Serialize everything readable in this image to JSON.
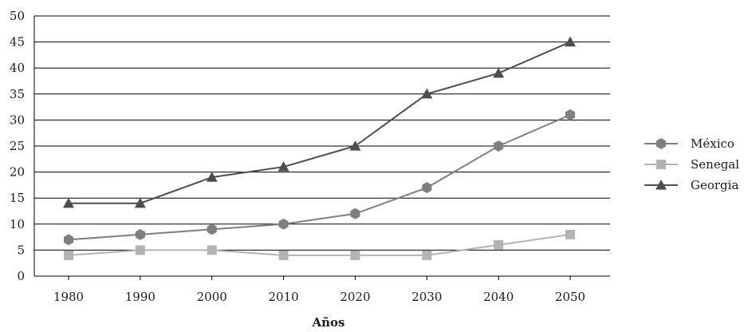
{
  "chart_data": {
    "type": "line",
    "title": "",
    "xlabel": "Años",
    "ylabel": "",
    "categories": [
      "1980",
      "1990",
      "2000",
      "2010",
      "2020",
      "2030",
      "2040",
      "2050"
    ],
    "ylim": [
      0,
      50
    ],
    "yticks": [
      0,
      5,
      10,
      15,
      20,
      25,
      30,
      35,
      40,
      45,
      50
    ],
    "grid": "horizontal",
    "legend_position": "right",
    "series": [
      {
        "name": "México",
        "marker": "hexagon",
        "color": "#7f7f7f",
        "values": [
          7,
          8,
          9,
          10,
          12,
          17,
          25,
          31
        ]
      },
      {
        "name": "Senegal",
        "marker": "square",
        "color": "#b3b3b3",
        "values": [
          4,
          5,
          5,
          4,
          4,
          4,
          6,
          8
        ]
      },
      {
        "name": "Georgia",
        "marker": "triangle",
        "color": "#4d4d4d",
        "values": [
          14,
          14,
          19,
          21,
          25,
          35,
          39,
          45
        ]
      }
    ]
  }
}
